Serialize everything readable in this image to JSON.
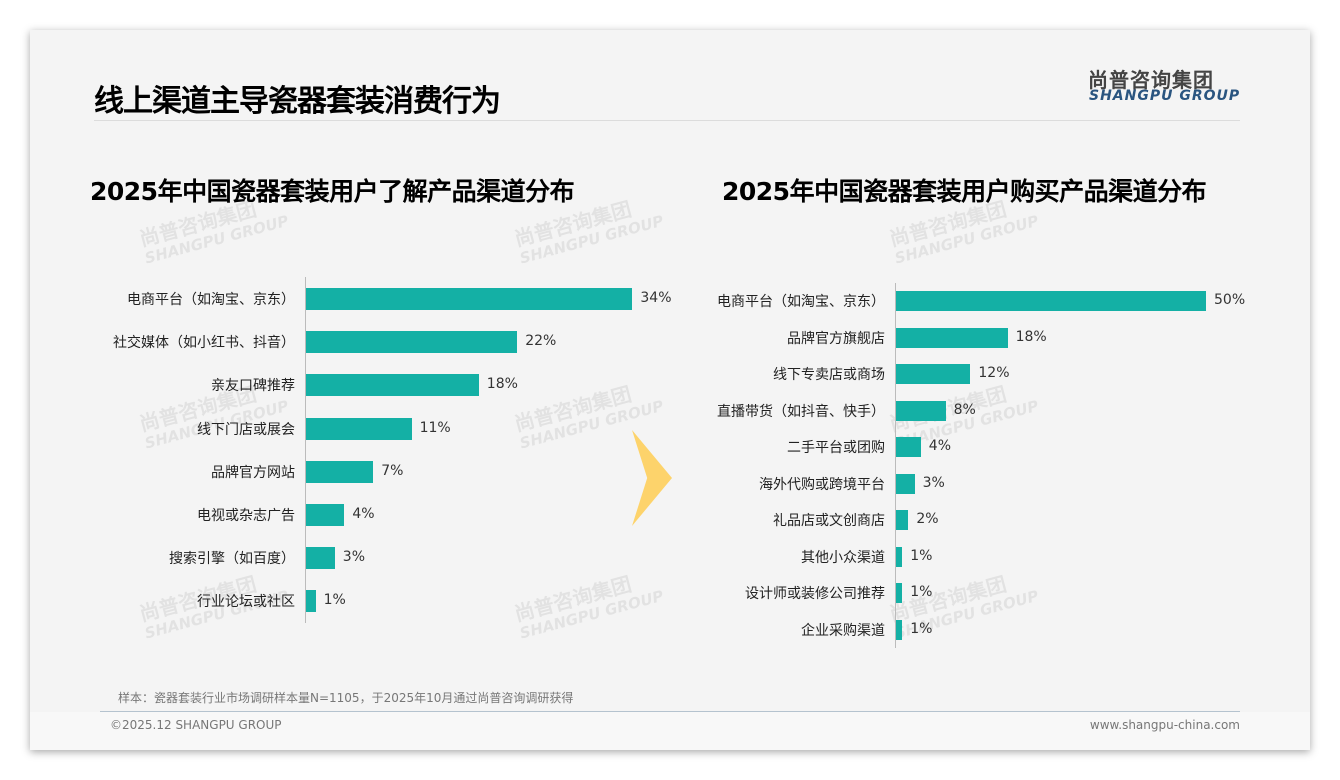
{
  "header": {
    "title": "线上渠道主导瓷器套装消费行为",
    "logo_cn": "尚普咨询集团",
    "logo_en": "SHANGPU GROUP"
  },
  "watermark": {
    "cn": "尚普咨询集团",
    "en": "SHANGPU GROUP"
  },
  "colors": {
    "bar": "#14b0a5",
    "arrow": "#fdd36b"
  },
  "chart_data": [
    {
      "type": "bar",
      "orientation": "horizontal",
      "title": "2025年中国瓷器套装用户了解产品渠道分布",
      "categories": [
        "电商平台（如淘宝、京东）",
        "社交媒体（如小红书、抖音）",
        "亲友口碑推荐",
        "线下门店或展会",
        "品牌官方网站",
        "电视或杂志广告",
        "搜索引擎（如百度）",
        "行业论坛或社区"
      ],
      "values": [
        34,
        22,
        18,
        11,
        7,
        4,
        3,
        1
      ],
      "labels": [
        "34%",
        "22%",
        "18%",
        "11%",
        "7%",
        "4%",
        "3%",
        "1%"
      ],
      "unit": "%"
    },
    {
      "type": "bar",
      "orientation": "horizontal",
      "title": "2025年中国瓷器套装用户购买产品渠道分布",
      "categories": [
        "电商平台（如淘宝、京东）",
        "品牌官方旗舰店",
        "线下专卖店或商场",
        "直播带货（如抖音、快手）",
        "二手平台或团购",
        "海外代购或跨境平台",
        "礼品店或文创商店",
        "其他小众渠道",
        "设计师或装修公司推荐",
        "企业采购渠道"
      ],
      "values": [
        50,
        18,
        12,
        8,
        4,
        3,
        2,
        1,
        1,
        1
      ],
      "labels": [
        "50%",
        "18%",
        "12%",
        "8%",
        "4%",
        "3%",
        "2%",
        "1%",
        "1%",
        "1%"
      ],
      "unit": "%"
    }
  ],
  "footer": {
    "note": "样本：瓷器套装行业市场调研样本量N=1105，于2025年10月通过尚普咨询调研获得",
    "copyright": "©2025.12 SHANGPU GROUP",
    "url": "www.shangpu-china.com"
  }
}
